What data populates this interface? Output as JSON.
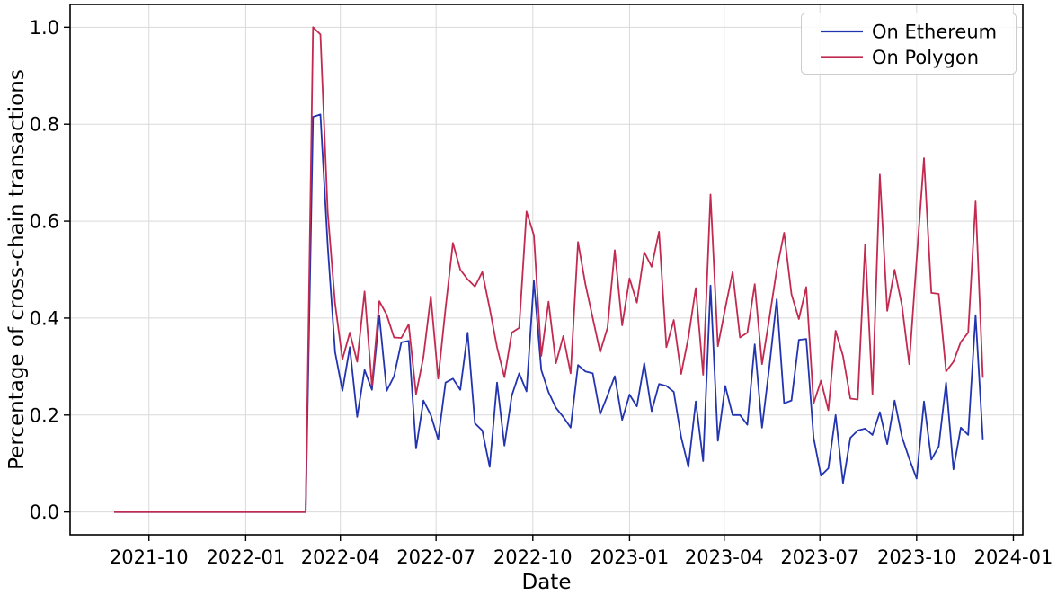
{
  "chart_data": {
    "type": "line",
    "title": "",
    "xlabel": "Date",
    "ylabel": "Percentage of cross-chain transactions",
    "grid": true,
    "legend_position": "upper right",
    "ylim": [
      -0.047,
      1.047
    ],
    "yticks": [
      0.0,
      0.2,
      0.4,
      0.6,
      0.8,
      1.0
    ],
    "y_tick_labels": [
      "0.0",
      "0.2",
      "0.4",
      "0.6",
      "0.8",
      "1.0"
    ],
    "x_ticks": [
      "2021-10-01",
      "2022-01-01",
      "2022-04-01",
      "2022-07-01",
      "2022-10-01",
      "2023-01-01",
      "2023-04-01",
      "2023-07-01",
      "2023-10-01",
      "2024-01-01"
    ],
    "x_tick_labels": [
      "2021-10",
      "2022-01",
      "2022-04",
      "2022-07",
      "2022-10",
      "2023-01",
      "2023-04",
      "2023-07",
      "2023-10",
      "2024-01"
    ],
    "x_range": [
      "2021-07-18",
      "2024-01-10"
    ],
    "x": [
      "2021-08-29",
      "2021-09-05",
      "2021-09-12",
      "2021-09-19",
      "2021-09-26",
      "2021-10-03",
      "2021-10-10",
      "2021-10-17",
      "2021-10-24",
      "2021-10-31",
      "2021-11-07",
      "2021-11-14",
      "2021-11-21",
      "2021-11-28",
      "2021-12-05",
      "2021-12-12",
      "2021-12-19",
      "2021-12-26",
      "2022-01-02",
      "2022-01-09",
      "2022-01-16",
      "2022-01-23",
      "2022-01-30",
      "2022-02-06",
      "2022-02-13",
      "2022-02-20",
      "2022-02-27",
      "2022-03-06",
      "2022-03-13",
      "2022-03-20",
      "2022-03-27",
      "2022-04-03",
      "2022-04-10",
      "2022-04-17",
      "2022-04-24",
      "2022-05-01",
      "2022-05-08",
      "2022-05-15",
      "2022-05-22",
      "2022-05-29",
      "2022-06-05",
      "2022-06-12",
      "2022-06-19",
      "2022-06-26",
      "2022-07-03",
      "2022-07-10",
      "2022-07-17",
      "2022-07-24",
      "2022-07-31",
      "2022-08-07",
      "2022-08-14",
      "2022-08-21",
      "2022-08-28",
      "2022-09-04",
      "2022-09-11",
      "2022-09-18",
      "2022-09-25",
      "2022-10-02",
      "2022-10-09",
      "2022-10-16",
      "2022-10-23",
      "2022-10-30",
      "2022-11-06",
      "2022-11-13",
      "2022-11-20",
      "2022-11-27",
      "2022-12-04",
      "2022-12-11",
      "2022-12-18",
      "2022-12-25",
      "2023-01-01",
      "2023-01-08",
      "2023-01-15",
      "2023-01-22",
      "2023-01-29",
      "2023-02-05",
      "2023-02-12",
      "2023-02-19",
      "2023-02-26",
      "2023-03-05",
      "2023-03-12",
      "2023-03-19",
      "2023-03-26",
      "2023-04-02",
      "2023-04-09",
      "2023-04-16",
      "2023-04-23",
      "2023-04-30",
      "2023-05-07",
      "2023-05-14",
      "2023-05-21",
      "2023-05-28",
      "2023-06-04",
      "2023-06-11",
      "2023-06-18",
      "2023-06-25",
      "2023-07-02",
      "2023-07-09",
      "2023-07-16",
      "2023-07-23",
      "2023-07-30",
      "2023-08-06",
      "2023-08-13",
      "2023-08-20",
      "2023-08-27",
      "2023-09-03",
      "2023-09-10",
      "2023-09-17",
      "2023-09-24",
      "2023-10-01",
      "2023-10-08",
      "2023-10-15",
      "2023-10-22",
      "2023-10-29",
      "2023-11-05",
      "2023-11-12",
      "2023-11-19",
      "2023-11-26",
      "2023-12-03"
    ],
    "series": [
      {
        "name": "On Ethereum",
        "color": "#2334b0",
        "values": [
          0,
          0,
          0,
          0,
          0,
          0,
          0,
          0,
          0,
          0,
          0,
          0,
          0,
          0,
          0,
          0,
          0,
          0,
          0,
          0,
          0,
          0,
          0,
          0,
          0,
          0,
          0,
          0.815,
          0.82,
          0.55,
          0.33,
          0.25,
          0.34,
          0.196,
          0.293,
          0.252,
          0.405,
          0.25,
          0.28,
          0.35,
          0.353,
          0.131,
          0.23,
          0.2,
          0.15,
          0.267,
          0.275,
          0.252,
          0.37,
          0.183,
          0.168,
          0.093,
          0.267,
          0.137,
          0.24,
          0.286,
          0.249,
          0.477,
          0.293,
          0.247,
          0.215,
          0.196,
          0.174,
          0.303,
          0.29,
          0.286,
          0.202,
          0.24,
          0.28,
          0.19,
          0.242,
          0.218,
          0.307,
          0.208,
          0.264,
          0.26,
          0.248,
          0.155,
          0.093,
          0.228,
          0.105,
          0.467,
          0.147,
          0.26,
          0.2,
          0.2,
          0.18,
          0.346,
          0.174,
          0.3,
          0.439,
          0.224,
          0.23,
          0.355,
          0.357,
          0.153,
          0.075,
          0.09,
          0.2,
          0.06,
          0.153,
          0.168,
          0.172,
          0.159,
          0.206,
          0.14,
          0.23,
          0.155,
          0.11,
          0.069,
          0.228,
          0.108,
          0.135,
          0.267,
          0.088,
          0.174,
          0.159,
          0.406,
          0.15
        ]
      },
      {
        "name": "On Polygon",
        "color": "#c32a50",
        "values": [
          0,
          0,
          0,
          0,
          0,
          0,
          0,
          0,
          0,
          0,
          0,
          0,
          0,
          0,
          0,
          0,
          0,
          0,
          0,
          0,
          0,
          0,
          0,
          0,
          0,
          0,
          0,
          1.0,
          0.985,
          0.62,
          0.43,
          0.315,
          0.37,
          0.31,
          0.455,
          0.26,
          0.435,
          0.407,
          0.36,
          0.359,
          0.387,
          0.243,
          0.32,
          0.445,
          0.275,
          0.42,
          0.555,
          0.5,
          0.48,
          0.465,
          0.495,
          0.42,
          0.34,
          0.278,
          0.37,
          0.38,
          0.62,
          0.571,
          0.322,
          0.434,
          0.307,
          0.363,
          0.286,
          0.557,
          0.47,
          0.4,
          0.33,
          0.38,
          0.54,
          0.385,
          0.482,
          0.432,
          0.536,
          0.506,
          0.578,
          0.34,
          0.396,
          0.285,
          0.36,
          0.462,
          0.283,
          0.655,
          0.342,
          0.42,
          0.495,
          0.36,
          0.37,
          0.47,
          0.305,
          0.4,
          0.5,
          0.576,
          0.449,
          0.398,
          0.464,
          0.224,
          0.271,
          0.21,
          0.374,
          0.322,
          0.234,
          0.232,
          0.552,
          0.243,
          0.696,
          0.415,
          0.5,
          0.426,
          0.305,
          0.52,
          0.73,
          0.452,
          0.45,
          0.29,
          0.31,
          0.351,
          0.37,
          0.641,
          0.277
        ]
      }
    ],
    "style": {
      "grid_color": "#d9d9d9",
      "spine_color": "#000000",
      "background": "#ffffff",
      "legend_border": "#cccccc",
      "line_width": 1.8
    }
  }
}
